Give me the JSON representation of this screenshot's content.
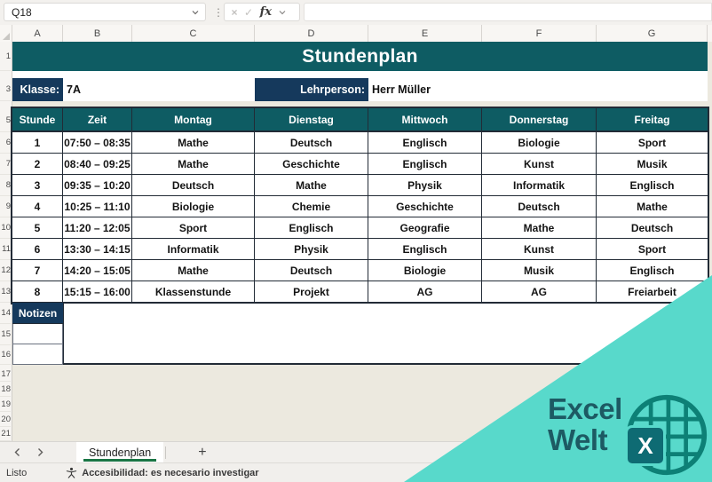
{
  "topbar": {
    "cell_reference": "Q18",
    "cancel_glyph": "×",
    "enter_glyph": "✓",
    "fx_label": "fx",
    "dots_glyph": "⋮",
    "formula_value": ""
  },
  "columns": [
    "A",
    "B",
    "C",
    "D",
    "E",
    "F",
    "G"
  ],
  "row_numbers": [
    "1",
    "3",
    "5",
    "6",
    "7",
    "8",
    "9",
    "10",
    "11",
    "12",
    "13",
    "14",
    "15",
    "16",
    "17",
    "18",
    "19",
    "20",
    "21"
  ],
  "sheet": {
    "title": "Stundenplan",
    "klasse_label": "Klasse:",
    "klasse_value": "7A",
    "lehrperson_label": "Lehrperson:",
    "lehrperson_value": "Herr Müller",
    "notizen_label": "Notizen",
    "table": {
      "headers": [
        "Stunde",
        "Zeit",
        "Montag",
        "Dienstag",
        "Mittwoch",
        "Donnerstag",
        "Freitag"
      ],
      "rows": [
        [
          "1",
          "07:50 – 08:35",
          "Mathe",
          "Deutsch",
          "Englisch",
          "Biologie",
          "Sport"
        ],
        [
          "2",
          "08:40 – 09:25",
          "Mathe",
          "Geschichte",
          "Englisch",
          "Kunst",
          "Musik"
        ],
        [
          "3",
          "09:35 – 10:20",
          "Deutsch",
          "Mathe",
          "Physik",
          "Informatik",
          "Englisch"
        ],
        [
          "4",
          "10:25 – 11:10",
          "Biologie",
          "Chemie",
          "Geschichte",
          "Deutsch",
          "Mathe"
        ],
        [
          "5",
          "11:20 – 12:05",
          "Sport",
          "Englisch",
          "Geografie",
          "Mathe",
          "Deutsch"
        ],
        [
          "6",
          "13:30 – 14:15",
          "Informatik",
          "Physik",
          "Englisch",
          "Kunst",
          "Sport"
        ],
        [
          "7",
          "14:20 – 15:05",
          "Mathe",
          "Deutsch",
          "Biologie",
          "Musik",
          "Englisch"
        ],
        [
          "8",
          "15:15 – 16:00",
          "Klassenstunde",
          "Projekt",
          "AG",
          "AG",
          "Freiarbeit"
        ]
      ]
    }
  },
  "tabs": {
    "active_sheet": "Stundenplan",
    "new_sheet_glyph": "+"
  },
  "status_bar": {
    "ready_text": "Listo",
    "accessibility_text": "Accesibilidad: es necesario investigar"
  },
  "watermark": {
    "line1": "Excel",
    "line2": "Welt",
    "x_glyph": "X"
  },
  "colors": {
    "header_teal": "#0e5c63",
    "label_navy": "#15395c",
    "table_border": "#222b36",
    "watermark_teal": "#58d9cb",
    "logo_dark": "#1d5a63",
    "excel_green": "#1a7544"
  }
}
